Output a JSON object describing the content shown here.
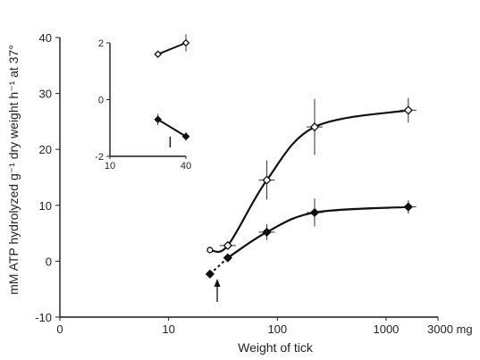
{
  "chart_data": [
    {
      "type": "line",
      "xscale": "log",
      "xlabel": "Weight of tick",
      "ylabel": "mM ATP hydrolyzed g⁻¹ dry weight h⁻¹ at 37°",
      "xlim": [
        1,
        3000
      ],
      "ylim": [
        -10,
        40
      ],
      "x_ticks": [
        "0",
        "10",
        "100",
        "1000",
        "3000 mg"
      ],
      "y_ticks": [
        "-10",
        "0",
        "10",
        "20",
        "30",
        "40"
      ],
      "series": [
        {
          "marker": "open-diamond",
          "points": [
            {
              "x": 24,
              "y": 2.0,
              "err": 0,
              "marker": "open-circle"
            },
            {
              "x": 35,
              "y": 2.8,
              "err": 0.6
            },
            {
              "x": 80,
              "y": 14.5,
              "err": 3.5
            },
            {
              "x": 220,
              "y": 24,
              "err": 5
            },
            {
              "x": 1600,
              "y": 27,
              "err": 2.2
            }
          ]
        },
        {
          "marker": "filled-diamond",
          "points": [
            {
              "x": 24,
              "y": -2.3,
              "err": 0
            },
            {
              "x": 35,
              "y": 0.6,
              "err": 0
            },
            {
              "x": 80,
              "y": 5.2,
              "err": 1.4
            },
            {
              "x": 220,
              "y": 8.7,
              "err": 2.5
            },
            {
              "x": 1600,
              "y": 9.7,
              "err": 1.2
            }
          ],
          "dotted_to_index": 1
        }
      ],
      "annotations": [
        {
          "type": "arrow-up",
          "x": 28
        }
      ]
    },
    {
      "type": "line",
      "inset": true,
      "xscale": "log",
      "xlim": [
        10,
        40
      ],
      "ylim": [
        -2,
        2
      ],
      "x_ticks": [
        "10",
        "40"
      ],
      "y_ticks": [
        "-2",
        "0",
        "2"
      ],
      "series": [
        {
          "marker": "open-diamond",
          "points": [
            {
              "x": 24,
              "y": 1.6,
              "err": 0
            },
            {
              "x": 40,
              "y": 2.0,
              "err": 0.3
            }
          ]
        },
        {
          "marker": "filled-diamond",
          "points": [
            {
              "x": 24,
              "y": -0.7,
              "err": 0.2
            },
            {
              "x": 40,
              "y": -1.3,
              "err": 0.15
            }
          ]
        }
      ],
      "annotations": [
        {
          "type": "tick-mark",
          "x": 30
        }
      ]
    }
  ]
}
